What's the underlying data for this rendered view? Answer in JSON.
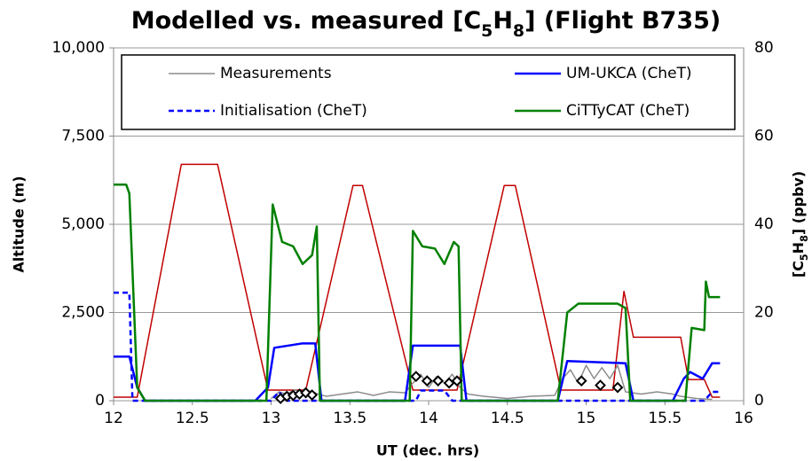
{
  "chart_data": {
    "type": "line",
    "title": [
      "Modelled vs. measured [C",
      "5",
      "H",
      "8",
      "] (Flight B735)"
    ],
    "x_label": "UT (dec. hrs)",
    "y_label": "Altitude (m)",
    "y2_label": [
      "[C",
      "5",
      "H",
      "8",
      "] (ppbv)"
    ],
    "xlim": [
      12,
      16
    ],
    "xticks": [
      12,
      12.5,
      13,
      13.5,
      14,
      14.5,
      15,
      15.5,
      16
    ],
    "ylim": [
      0,
      10000
    ],
    "yticks": [
      0,
      {
        "value": 2500,
        "label": "2,500"
      },
      {
        "value": 5000,
        "label": "5,000"
      },
      {
        "value": 7500,
        "label": "7,500"
      },
      {
        "value": 10000,
        "label": "10,000"
      }
    ],
    "y2lim": [
      0,
      80
    ],
    "y2ticks": [
      0,
      20,
      40,
      60,
      80
    ],
    "y_color": "#c00000",
    "grid": true,
    "legend": "top",
    "series": [
      {
        "color": "#c00000",
        "axis": "y",
        "x": [
          12.0,
          12.15,
          12.43,
          12.66,
          12.98,
          13.22,
          13.52,
          13.58,
          13.9,
          14.18,
          14.48,
          14.55,
          14.84,
          15.17,
          15.24,
          15.3,
          15.6,
          15.65,
          15.75,
          15.8,
          15.85
        ],
        "values": [
          100,
          100,
          6700,
          6700,
          300,
          300,
          6100,
          6100,
          300,
          300,
          6100,
          6100,
          300,
          300,
          3100,
          1800,
          1800,
          600,
          600,
          100,
          100
        ]
      },
      {
        "name": "Measurements",
        "color": "#8c8c8c",
        "axis": "y2",
        "x": [
          13.0,
          13.05,
          13.1,
          13.15,
          13.2,
          13.25,
          13.3,
          13.35,
          13.45,
          13.55,
          13.65,
          13.75,
          13.85,
          13.9,
          13.95,
          14.0,
          14.05,
          14.1,
          14.15,
          14.2,
          14.25,
          14.35,
          14.5,
          14.65,
          14.8,
          14.85,
          14.9,
          14.95,
          15.0,
          15.05,
          15.1,
          15.15,
          15.2,
          15.25,
          15.35,
          15.45,
          15.55,
          15.6,
          15.7,
          15.8
        ],
        "values": [
          0.5,
          2,
          1.5,
          2.5,
          1.8,
          2.2,
          1.5,
          1,
          1.5,
          2,
          1.2,
          2,
          1.8,
          4,
          6,
          3,
          5.5,
          4,
          6,
          3,
          1.5,
          1,
          0.5,
          1,
          1.2,
          5,
          7,
          4,
          8,
          5,
          7.5,
          5,
          8,
          2,
          1.5,
          2,
          1.5,
          1,
          0.5,
          0.3
        ]
      },
      {
        "name": "UM-UKCA (CheT)",
        "color": "#0000ff",
        "axis": "y2",
        "x": [
          12.0,
          12.1,
          12.15,
          12.2,
          12.9,
          12.98,
          13.02,
          13.2,
          13.28,
          13.32,
          13.85,
          13.9,
          14.2,
          14.24,
          14.82,
          14.88,
          15.25,
          15.3,
          15.55,
          15.62,
          15.66,
          15.74,
          15.8,
          15.85
        ],
        "values": [
          10,
          10,
          3,
          0,
          0,
          3,
          12,
          13,
          13,
          0,
          0,
          12.5,
          12.5,
          0,
          0,
          9,
          8.5,
          0,
          0,
          5,
          6.5,
          5,
          8.5,
          8.5
        ]
      },
      {
        "name": "Initialisation (CheT)",
        "color": "#0000ff",
        "axis": "y2",
        "dash": true,
        "x": [
          12.0,
          12.1,
          12.12,
          13.0,
          13.05,
          13.1,
          13.3,
          13.92,
          13.95,
          14.1,
          14.15,
          15.75,
          15.8,
          15.85
        ],
        "values": [
          24.5,
          24.5,
          0,
          0,
          2,
          0,
          0,
          0,
          2.3,
          2.3,
          0,
          0,
          2,
          2
        ]
      },
      {
        "name": "CiTTyCAT (CheT)",
        "color": "#008000",
        "axis": "y2",
        "x": [
          12.0,
          12.08,
          12.1,
          12.15,
          12.2,
          12.97,
          13.01,
          13.07,
          13.14,
          13.2,
          13.26,
          13.29,
          13.31,
          13.88,
          13.9,
          13.96,
          14.04,
          14.1,
          14.16,
          14.19,
          14.21,
          14.82,
          14.88,
          14.95,
          15.2,
          15.25,
          15.28,
          15.63,
          15.67,
          15.75,
          15.76,
          15.78,
          15.85
        ],
        "values": [
          49,
          49,
          47,
          3,
          0,
          0,
          44.5,
          36,
          35,
          31,
          33,
          39.5,
          0,
          0,
          38.5,
          35,
          34.5,
          31,
          36,
          35,
          0,
          0,
          20,
          22,
          22,
          21,
          0,
          0,
          16.5,
          16,
          27,
          23.5,
          23.5
        ]
      },
      {
        "color": "#000000",
        "axis": "y2",
        "marker": "diamond",
        "x": [
          13.06,
          13.1,
          13.14,
          13.18,
          13.22,
          13.26,
          13.92,
          13.99,
          14.06,
          14.13,
          14.18,
          14.97,
          15.09,
          15.2
        ],
        "values": [
          0.5,
          1,
          1.2,
          1.5,
          1.8,
          1.3,
          5.5,
          4.5,
          4.5,
          4,
          4.5,
          4.5,
          3.5,
          3
        ]
      }
    ]
  }
}
